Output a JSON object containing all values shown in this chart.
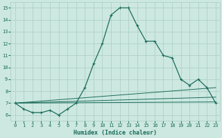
{
  "xlabel": "Humidex (Indice chaleur)",
  "xlim": [
    -0.5,
    23.5
  ],
  "ylim": [
    5.5,
    15.5
  ],
  "yticks": [
    6,
    7,
    8,
    9,
    10,
    11,
    12,
    13,
    14,
    15
  ],
  "xticks": [
    0,
    1,
    2,
    3,
    4,
    5,
    6,
    7,
    8,
    9,
    10,
    11,
    12,
    13,
    14,
    15,
    16,
    17,
    18,
    19,
    20,
    21,
    22,
    23
  ],
  "background_color": "#cce8e0",
  "grid_color": "#aaccc4",
  "line_color": "#1a6b5a",
  "curve1_x": [
    0,
    1,
    2,
    3,
    4,
    5,
    6,
    7,
    8,
    9,
    10,
    11,
    12,
    13,
    14,
    15,
    16,
    17,
    18,
    19,
    20,
    21,
    22,
    23
  ],
  "curve1_y": [
    7.0,
    6.5,
    6.2,
    6.2,
    6.4,
    6.0,
    6.5,
    7.0,
    8.3,
    10.3,
    12.0,
    14.4,
    15.0,
    15.0,
    13.5,
    12.2,
    12.2,
    11.0,
    10.8,
    9.0,
    8.5,
    9.0,
    8.3,
    7.0
  ],
  "curve2_x": [
    0,
    23
  ],
  "curve2_y": [
    7.0,
    8.3
  ],
  "curve3_x": [
    0,
    23
  ],
  "curve3_y": [
    7.0,
    7.5
  ],
  "curve4_x": [
    0,
    23
  ],
  "curve4_y": [
    7.0,
    7.1
  ]
}
